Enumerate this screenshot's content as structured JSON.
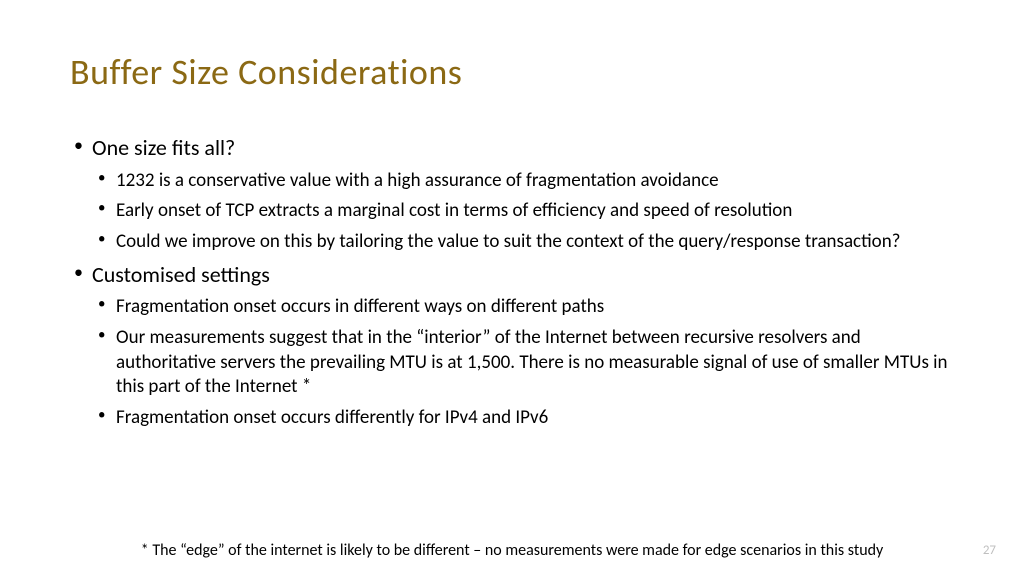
{
  "slide": {
    "title": "Buffer Size Considerations",
    "title_color": "#8b6914",
    "background_color": "#ffffff",
    "text_color": "#000000",
    "title_fontsize": 36,
    "level1_fontsize": 22,
    "level2_fontsize": 19,
    "footnote_fontsize": 16,
    "bullets": [
      {
        "text": "One size fits all?",
        "children": [
          "1232 is a conservative value with a high assurance of fragmentation avoidance",
          "Early onset of TCP extracts a marginal cost in terms of efficiency and speed of resolution",
          "Could we improve on this by tailoring the value to suit the context of the query/response transaction?"
        ]
      },
      {
        "text": "Customised settings",
        "children": [
          "Fragmentation onset occurs in different ways on different paths",
          "Our measurements suggest that in the “interior” of the Internet between recursive resolvers and authoritative servers the prevailing MTU is at 1,500. There is no measurable signal of use of smaller MTUs in this part of the Internet *",
          "Fragmentation onset occurs differently for IPv4 and IPv6"
        ]
      }
    ],
    "footnote": "* The “edge” of the internet is likely to be different – no measurements were made for edge scenarios in this study",
    "page_number": "27"
  }
}
